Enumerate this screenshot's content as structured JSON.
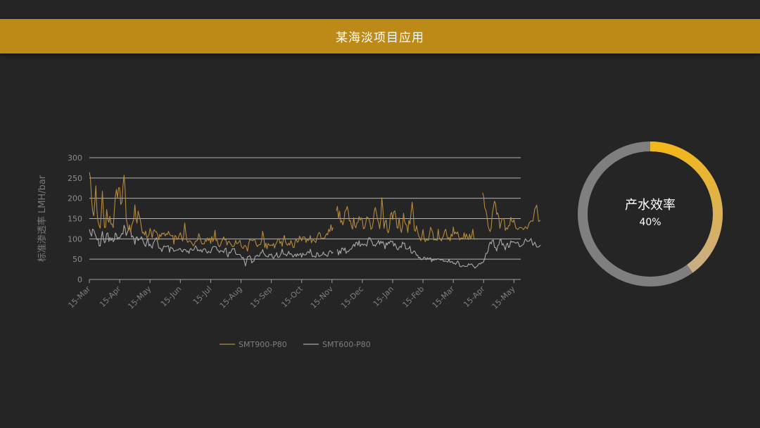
{
  "header": {
    "title": "某海淡项目应用"
  },
  "colors": {
    "background": "#252525",
    "header": "#bd8a17",
    "series1": "#b58a3e",
    "series2": "#a9a9a9",
    "grid": "#b5b5b5",
    "ring_track": "#7f7f7f",
    "ring_start": "#f2b71a",
    "ring_end": "#c9ad86"
  },
  "chart_data": {
    "type": "line",
    "ylabel": "标准渗透率 LMH/bar",
    "xlabel": "",
    "ylim": [
      0,
      300
    ],
    "yticks": [
      0,
      50,
      100,
      150,
      200,
      250,
      300
    ],
    "grid": true,
    "legend": "bottom",
    "x_tick_labels": [
      "15-Mar",
      "15-Apr",
      "15-May",
      "15-Jun",
      "15-Jul",
      "15-Aug",
      "15-Sep",
      "15-Oct",
      "15-Nov",
      "15-Dec",
      "15-Jan",
      "15-Feb",
      "15-Mar",
      "15-Apr",
      "15-May"
    ],
    "series": [
      {
        "name": "SMT900-P80",
        "approx_monthly_values": [
          [
            280,
            200,
            150,
            230,
            140,
            130,
            200,
            120,
            160,
            150,
            140,
            130,
            200,
            210
          ],
          [
            220,
            180,
            260,
            150,
            130,
            120,
            140,
            170,
            150,
            160,
            130,
            120,
            110,
            105
          ],
          [
            120,
            110,
            130,
            115,
            100,
            110,
            115,
            100,
            120,
            110,
            105,
            95,
            110,
            100
          ],
          [
            110,
            100,
            130,
            105,
            95,
            100,
            90,
            95,
            100,
            110,
            90,
            95,
            100,
            95
          ],
          [
            95,
            100,
            115,
            90,
            85,
            90,
            100,
            95,
            90,
            85,
            80,
            85,
            95,
            90
          ],
          [
            90,
            80,
            85,
            75,
            90,
            95,
            100,
            85,
            80,
            90,
            110,
            85,
            80,
            90
          ],
          [
            85,
            90,
            80,
            100,
            95,
            85,
            110,
            90,
            85,
            95,
            80,
            90,
            95,
            100
          ],
          [
            100,
            110,
            90,
            95,
            105,
            90,
            100,
            95,
            110,
            100,
            105,
            100,
            115,
            125
          ],
          [
            130,
            145,
            175,
            160,
            150,
            130,
            160,
            190,
            150,
            130,
            140,
            120,
            140,
            150
          ],
          [
            140,
            130,
            150,
            160,
            130,
            140,
            170,
            150,
            120,
            190,
            130,
            140,
            120,
            150
          ],
          [
            160,
            180,
            120,
            140,
            110,
            150,
            130,
            125,
            145,
            190,
            120,
            130,
            110,
            100
          ],
          [
            120,
            100,
            90,
            110,
            130,
            100,
            95,
            115,
            105,
            100,
            125,
            110,
            100,
            105
          ],
          [
            120,
            115,
            110,
            100,
            95,
            110,
            105,
            100,
            110,
            120,
            100,
            95,
            110,
            200
          ],
          [
            205,
            170,
            140,
            120,
            150,
            190,
            170,
            140,
            135,
            150,
            130,
            120,
            145,
            140
          ],
          [
            140,
            130,
            125,
            135,
            130,
            150,
            170,
            140
          ]
        ],
        "gaps": [
          [
            8.05,
            8.12
          ],
          [
            12.75,
            12.95
          ],
          [
            14.93,
            15.0
          ]
        ]
      },
      {
        "name": "SMT600-P80",
        "approx_monthly_values": [
          [
            135,
            110,
            120,
            105,
            95,
            80,
            110,
            90,
            115,
            100,
            105,
            95,
            110,
            100
          ],
          [
            110,
            105,
            130,
            110,
            125,
            120,
            100,
            90,
            105,
            95,
            100,
            85,
            80,
            95
          ],
          [
            80,
            75,
            90,
            100,
            85,
            70,
            80,
            75,
            85,
            70,
            80,
            75,
            70,
            75
          ],
          [
            75,
            70,
            80,
            72,
            68,
            75,
            70,
            80,
            70,
            72,
            68,
            75,
            70,
            65
          ],
          [
            70,
            75,
            80,
            72,
            68,
            65,
            70,
            75,
            60,
            68,
            72,
            70,
            65,
            60
          ],
          [
            62,
            50,
            35,
            55,
            60,
            40,
            45,
            60,
            55,
            65,
            70,
            60,
            55,
            62
          ],
          [
            60,
            55,
            65,
            58,
            62,
            70,
            60,
            55,
            68,
            60,
            58,
            62,
            60,
            58
          ],
          [
            60,
            62,
            58,
            65,
            70,
            60,
            55,
            62,
            58,
            60,
            65,
            60,
            62,
            65
          ],
          [
            68,
            70,
            72,
            65,
            70,
            75,
            72,
            68,
            70,
            75,
            80,
            85,
            90,
            88
          ],
          [
            90,
            95,
            88,
            100,
            95,
            90,
            85,
            92,
            88,
            95,
            80,
            85,
            90,
            95
          ],
          [
            90,
            85,
            80,
            75,
            85,
            95,
            70,
            80,
            75,
            68,
            65,
            60,
            55,
            50
          ],
          [
            55,
            50,
            52,
            55,
            45,
            50,
            48,
            52,
            45,
            50,
            42,
            45,
            48,
            42
          ],
          [
            40,
            38,
            42,
            35,
            30,
            35,
            32,
            38,
            40,
            35,
            30,
            35,
            38,
            40
          ],
          [
            42,
            60,
            75,
            90,
            95,
            85,
            70,
            90,
            100,
            85,
            75,
            90,
            80,
            95
          ],
          [
            85,
            90,
            80,
            95,
            100,
            90,
            85,
            80
          ]
        ],
        "gaps": [
          [
            8.05,
            8.15
          ],
          [
            14.93,
            15.0
          ]
        ]
      }
    ]
  },
  "donut": {
    "label": "产水效率",
    "value_text": "40%",
    "percent": 40
  }
}
